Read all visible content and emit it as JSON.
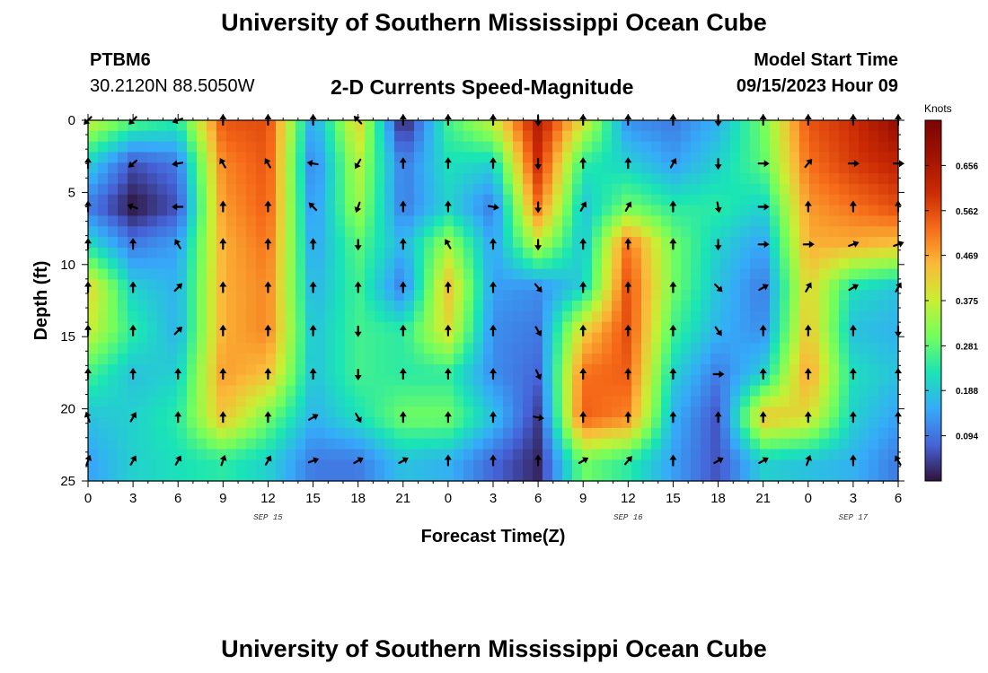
{
  "header": {
    "title": "University of Southern Mississippi Ocean Cube",
    "station_id": "PTBM6",
    "station_coords": "30.2120N  88.5050W",
    "subtitle": "2-D Currents Speed-Magnitude",
    "model_start_label": "Model Start Time",
    "model_start_value": "09/15/2023 Hour 09"
  },
  "footer": {
    "title": "University of Southern Mississippi Ocean Cube"
  },
  "chart_data": {
    "type": "heatmap",
    "title": "2-D Currents Speed-Magnitude",
    "xlabel": "Forecast Time(Z)",
    "ylabel": "Depth (ft)",
    "x_tick_labels": [
      "0",
      "3",
      "6",
      "9",
      "12",
      "15",
      "18",
      "21",
      "0",
      "3",
      "6",
      "9",
      "12",
      "15",
      "18",
      "21",
      "0",
      "3",
      "6"
    ],
    "x_range_hours": [
      0,
      54
    ],
    "date_labels": [
      {
        "text": "SEP 15",
        "hour": 12
      },
      {
        "text": "SEP 16",
        "hour": 36
      },
      {
        "text": "SEP 17",
        "hour": 51
      }
    ],
    "y_ticks": [
      0,
      5,
      10,
      15,
      20,
      25
    ],
    "ylim": [
      0,
      25
    ],
    "y_inverted": true,
    "colorbar": {
      "units": "Knots",
      "ticks": [
        0.656,
        0.562,
        0.469,
        0.375,
        0.281,
        0.188,
        0.094
      ],
      "range": [
        0.0,
        0.75
      ]
    },
    "vector_hours": [
      0,
      3,
      6,
      9,
      12,
      15,
      18,
      21,
      24,
      27,
      30,
      33,
      36,
      39,
      42,
      45,
      48,
      51,
      54
    ],
    "vector_depths_ft": [
      0,
      3,
      6,
      8.6,
      11.6,
      14.6,
      17.6,
      20.6,
      23.6
    ],
    "speed_grid": {
      "hours": [
        0,
        3,
        6,
        9,
        12,
        15,
        18,
        21,
        24,
        27,
        30,
        33,
        36,
        39,
        42,
        45,
        48,
        51,
        54
      ],
      "depths_ft": [
        0,
        3,
        6,
        8.6,
        11.6,
        14.6,
        17.6,
        20.6,
        23.6
      ],
      "values_knots": [
        [
          0.38,
          0.28,
          0.24,
          0.55,
          0.56,
          0.14,
          0.42,
          0.0,
          0.26,
          0.38,
          0.64,
          0.4,
          0.12,
          0.1,
          0.16,
          0.3,
          0.55,
          0.6,
          0.7
        ],
        [
          0.2,
          0.06,
          0.1,
          0.5,
          0.55,
          0.1,
          0.36,
          0.1,
          0.22,
          0.2,
          0.6,
          0.24,
          0.2,
          0.14,
          0.2,
          0.28,
          0.52,
          0.58,
          0.62
        ],
        [
          0.1,
          0.0,
          0.06,
          0.48,
          0.54,
          0.12,
          0.34,
          0.1,
          0.2,
          0.1,
          0.52,
          0.18,
          0.3,
          0.24,
          0.24,
          0.2,
          0.48,
          0.52,
          0.56
        ],
        [
          0.22,
          0.1,
          0.14,
          0.46,
          0.52,
          0.14,
          0.28,
          0.16,
          0.34,
          0.14,
          0.36,
          0.18,
          0.52,
          0.3,
          0.2,
          0.14,
          0.46,
          0.46,
          0.44
        ],
        [
          0.42,
          0.2,
          0.16,
          0.46,
          0.5,
          0.16,
          0.26,
          0.1,
          0.44,
          0.14,
          0.12,
          0.2,
          0.56,
          0.3,
          0.18,
          0.1,
          0.42,
          0.22,
          0.18
        ],
        [
          0.38,
          0.24,
          0.16,
          0.46,
          0.5,
          0.18,
          0.26,
          0.24,
          0.4,
          0.12,
          0.1,
          0.42,
          0.56,
          0.26,
          0.16,
          0.12,
          0.44,
          0.18,
          0.16
        ],
        [
          0.26,
          0.18,
          0.2,
          0.48,
          0.44,
          0.18,
          0.26,
          0.24,
          0.24,
          0.12,
          0.08,
          0.52,
          0.54,
          0.2,
          0.1,
          0.2,
          0.48,
          0.22,
          0.18
        ],
        [
          0.18,
          0.2,
          0.24,
          0.44,
          0.3,
          0.16,
          0.22,
          0.3,
          0.3,
          0.18,
          0.04,
          0.54,
          0.5,
          0.16,
          0.06,
          0.44,
          0.4,
          0.2,
          0.14
        ],
        [
          0.14,
          0.2,
          0.22,
          0.24,
          0.2,
          0.1,
          0.1,
          0.18,
          0.16,
          0.08,
          0.02,
          0.3,
          0.24,
          0.14,
          0.06,
          0.2,
          0.18,
          0.16,
          0.1
        ]
      ]
    },
    "vector_directions_deg": [
      [
        225,
        225,
        250,
        0,
        0,
        0,
        315,
        0,
        0,
        0,
        180,
        0,
        0,
        0,
        180,
        0,
        0,
        0,
        0
      ],
      [
        0,
        230,
        260,
        330,
        330,
        280,
        210,
        0,
        0,
        0,
        180,
        0,
        0,
        30,
        180,
        90,
        40,
        90,
        90
      ],
      [
        0,
        290,
        270,
        0,
        0,
        315,
        200,
        0,
        0,
        100,
        180,
        30,
        30,
        0,
        170,
        90,
        0,
        0,
        0
      ],
      [
        0,
        0,
        330,
        0,
        0,
        0,
        180,
        0,
        330,
        0,
        180,
        0,
        0,
        0,
        180,
        90,
        90,
        70,
        70
      ],
      [
        0,
        0,
        45,
        0,
        0,
        0,
        0,
        0,
        0,
        0,
        140,
        0,
        0,
        0,
        135,
        60,
        30,
        60,
        30
      ],
      [
        0,
        0,
        45,
        0,
        0,
        0,
        180,
        0,
        0,
        0,
        150,
        0,
        0,
        0,
        145,
        0,
        0,
        0,
        180
      ],
      [
        0,
        0,
        0,
        0,
        0,
        0,
        180,
        0,
        0,
        0,
        155,
        0,
        0,
        0,
        90,
        0,
        0,
        0,
        0
      ],
      [
        340,
        30,
        0,
        0,
        0,
        60,
        150,
        0,
        0,
        0,
        100,
        0,
        0,
        0,
        0,
        0,
        0,
        0,
        0
      ],
      [
        20,
        30,
        30,
        20,
        30,
        70,
        60,
        60,
        0,
        0,
        0,
        60,
        40,
        0,
        60,
        60,
        20,
        0,
        330
      ]
    ]
  }
}
